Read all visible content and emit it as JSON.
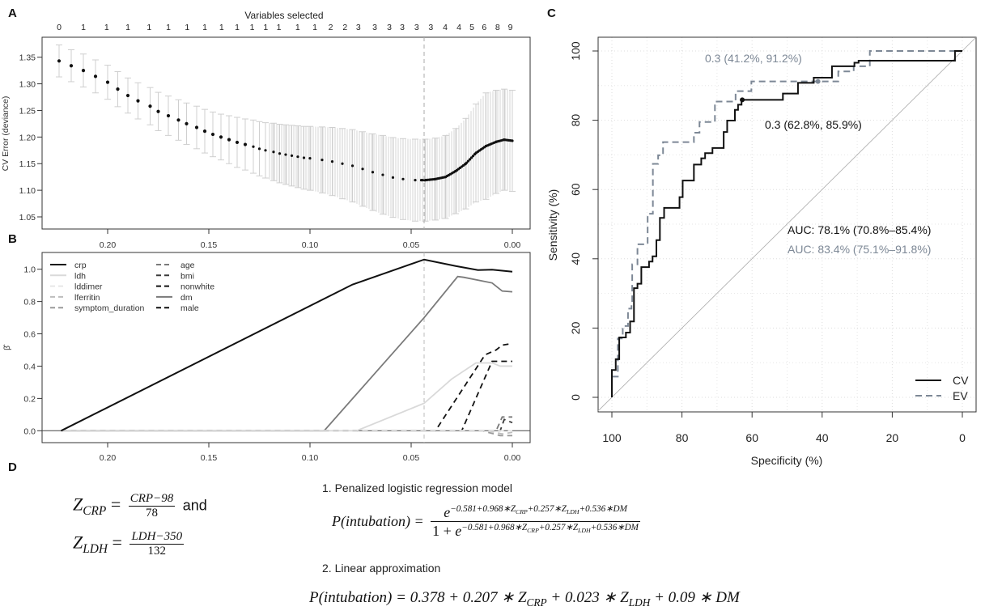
{
  "panel_labels": {
    "a": "A",
    "b": "B",
    "c": "C",
    "d": "D"
  },
  "chart_data": [
    {
      "type": "scatter",
      "panel": "A",
      "top_axis_title": "Variables selected",
      "ylabel": "CV Error (deviance)",
      "xlim": [
        0.23,
        0.0
      ],
      "ylim": [
        1.03,
        1.38
      ],
      "xticks": [
        "0.20",
        "0.15",
        "0.10",
        "0.05",
        "0.00"
      ],
      "yticks": [
        "1.05",
        "1.10",
        "1.15",
        "1.20",
        "1.25",
        "1.30",
        "1.35"
      ],
      "lambda_min": 0.0436,
      "variables_selected": {
        "lambda": [
          0.224,
          0.212,
          0.2005,
          0.19,
          0.1795,
          0.17,
          0.1607,
          0.152,
          0.1437,
          0.136,
          0.1286,
          0.1219,
          0.1154,
          0.1061,
          0.0976,
          0.0898,
          0.0827,
          0.0761,
          0.068,
          0.0608,
          0.0544,
          0.0473,
          0.0403,
          0.0332,
          0.0264,
          0.02,
          0.0139,
          0.0073,
          0.001
        ],
        "count": [
          "0",
          "1",
          "1",
          "1",
          "1",
          "1",
          "1",
          "1",
          "1",
          "1",
          "1",
          "1",
          "1",
          "1",
          "1",
          "2",
          "2",
          "3",
          "3",
          "3",
          "3",
          "3",
          "3",
          "4",
          "4",
          "5",
          "6",
          "8",
          "9"
        ]
      },
      "lambda": [
        0.224,
        0.218,
        0.212,
        0.206,
        0.2,
        0.195,
        0.19,
        0.185,
        0.179,
        0.175,
        0.17,
        0.165,
        0.161,
        0.156,
        0.152,
        0.148,
        0.144,
        0.14,
        0.136,
        0.132,
        0.128,
        0.125,
        0.122,
        0.118,
        0.115,
        0.112,
        0.109,
        0.106,
        0.103,
        0.1,
        0.094,
        0.089,
        0.084,
        0.079,
        0.074,
        0.069,
        0.064,
        0.059,
        0.054,
        0.048,
        0.043,
        0.038,
        0.033,
        0.028,
        0.023,
        0.018,
        0.013,
        0.008,
        0.004,
        0.0
      ],
      "cv": [
        1.343,
        1.334,
        1.325,
        1.314,
        1.303,
        1.29,
        1.278,
        1.268,
        1.258,
        1.248,
        1.24,
        1.232,
        1.225,
        1.218,
        1.211,
        1.205,
        1.2,
        1.195,
        1.19,
        1.186,
        1.182,
        1.178,
        1.175,
        1.172,
        1.169,
        1.167,
        1.165,
        1.163,
        1.161,
        1.16,
        1.157,
        1.154,
        1.15,
        1.146,
        1.14,
        1.134,
        1.129,
        1.124,
        1.121,
        1.119,
        1.119,
        1.121,
        1.125,
        1.136,
        1.15,
        1.17,
        1.183,
        1.191,
        1.195,
        1.193
      ],
      "se": [
        0.03,
        0.03,
        0.031,
        0.031,
        0.032,
        0.033,
        0.033,
        0.034,
        0.035,
        0.036,
        0.037,
        0.038,
        0.039,
        0.04,
        0.041,
        0.042,
        0.043,
        0.045,
        0.047,
        0.048,
        0.05,
        0.051,
        0.052,
        0.054,
        0.055,
        0.056,
        0.057,
        0.058,
        0.059,
        0.06,
        0.062,
        0.064,
        0.066,
        0.068,
        0.07,
        0.072,
        0.074,
        0.075,
        0.076,
        0.077,
        0.077,
        0.077,
        0.078,
        0.08,
        0.085,
        0.092,
        0.1,
        0.097,
        0.095,
        0.095
      ]
    },
    {
      "type": "line",
      "panel": "B",
      "ylabel": "β̂",
      "xlim": [
        0.23,
        0.0
      ],
      "ylim": [
        -0.07,
        1.1
      ],
      "xticks": [
        "0.20",
        "0.15",
        "0.10",
        "0.05",
        "0.00"
      ],
      "yticks": [
        "0.0",
        "0.2",
        "0.4",
        "0.6",
        "0.8",
        "1.0"
      ],
      "lambda_min": 0.0436,
      "series": [
        {
          "name": "crp",
          "color": "#111111",
          "dash": false,
          "points": [
            [
              0.223,
              0
            ],
            [
              0.079,
              0.905
            ],
            [
              0.0436,
              1.06
            ],
            [
              0.028,
              1.02
            ],
            [
              0.017,
              0.995
            ],
            [
              0.01,
              0.997
            ],
            [
              0.0,
              0.985
            ]
          ]
        },
        {
          "name": "ldh",
          "color": "#d9d9d9",
          "dash": false,
          "points": [
            [
              0.23,
              0
            ],
            [
              0.077,
              0
            ],
            [
              0.0436,
              0.17
            ],
            [
              0.03,
              0.32
            ],
            [
              0.018,
              0.42
            ],
            [
              0.01,
              0.42
            ],
            [
              0.006,
              0.4
            ],
            [
              0.0,
              0.4
            ]
          ]
        },
        {
          "name": "lddimer",
          "color": "#e6e6e6",
          "dash": true,
          "points": [
            [
              0.23,
              0
            ],
            [
              0.0,
              0
            ]
          ]
        },
        {
          "name": "lferritin",
          "color": "#bdbdbd",
          "dash": true,
          "points": [
            [
              0.23,
              0
            ],
            [
              0.012,
              0
            ],
            [
              0.005,
              -0.02
            ],
            [
              0.0,
              -0.01
            ]
          ]
        },
        {
          "name": "symptom_duration",
          "color": "#9a9a9a",
          "dash": true,
          "points": [
            [
              0.23,
              0
            ],
            [
              0.015,
              0
            ],
            [
              0.006,
              -0.03
            ],
            [
              0.0,
              -0.03
            ]
          ]
        },
        {
          "name": "age",
          "color": "#7a7a7a",
          "dash": true,
          "points": [
            [
              0.23,
              0
            ],
            [
              0.008,
              0
            ],
            [
              0.005,
              0.085
            ],
            [
              0.0,
              0.085
            ]
          ]
        },
        {
          "name": "bmi",
          "color": "#3a3a3a",
          "dash": true,
          "points": [
            [
              0.23,
              0
            ],
            [
              0.006,
              0
            ],
            [
              0.004,
              0.07
            ],
            [
              0.0,
              0.05
            ]
          ]
        },
        {
          "name": "nonwhite",
          "color": "#111111",
          "dash": true,
          "points": [
            [
              0.23,
              0
            ],
            [
              0.038,
              0
            ],
            [
              0.0135,
              0.47
            ],
            [
              0.008,
              0.5
            ],
            [
              0.005,
              0.53
            ],
            [
              0.0,
              0.54
            ]
          ]
        },
        {
          "name": "dm",
          "color": "#7a7a7a",
          "dash": false,
          "points": [
            [
              0.23,
              0
            ],
            [
              0.093,
              0
            ],
            [
              0.0436,
              0.7
            ],
            [
              0.027,
              0.955
            ],
            [
              0.024,
              0.95
            ],
            [
              0.01,
              0.915
            ],
            [
              0.005,
              0.865
            ],
            [
              0.0,
              0.86
            ]
          ]
        },
        {
          "name": "male",
          "color": "#111111",
          "dash": true,
          "points": [
            [
              0.23,
              0
            ],
            [
              0.025,
              0
            ],
            [
              0.01,
              0.43
            ],
            [
              0.0,
              0.43
            ]
          ]
        }
      ]
    },
    {
      "type": "line",
      "panel": "C",
      "xlabel": "Specificity (%)",
      "ylabel": "Sensitivity (%)",
      "xlim": [
        100,
        0
      ],
      "ylim": [
        0,
        100
      ],
      "xticks": [
        "100",
        "80",
        "60",
        "40",
        "20",
        "0"
      ],
      "yticks": [
        "0",
        "20",
        "40",
        "60",
        "80",
        "100"
      ],
      "grid": true,
      "legend_position": "bottom-right",
      "series": [
        {
          "name": "CV",
          "color": "#111111",
          "dash": false,
          "auc_label": "AUC: 78.1% (70.8%–85.4%)",
          "threshold_label": "0.3 (62.8%, 85.9%)",
          "threshold_point": [
            62.8,
            85.9
          ],
          "points": [
            [
              100,
              0
            ],
            [
              100,
              7.9
            ],
            [
              98.9,
              7.9
            ],
            [
              98.9,
              11
            ],
            [
              97.9,
              11
            ],
            [
              97.9,
              17.3
            ],
            [
              96,
              17.3
            ],
            [
              96,
              18.7
            ],
            [
              94.8,
              18.7
            ],
            [
              94.8,
              21.9
            ],
            [
              93.7,
              21.9
            ],
            [
              93.7,
              31.5
            ],
            [
              92.7,
              31.5
            ],
            [
              92.7,
              32.8
            ],
            [
              91.6,
              32.8
            ],
            [
              91.6,
              37.6
            ],
            [
              89.4,
              37.6
            ],
            [
              89.4,
              39.2
            ],
            [
              88.4,
              39.2
            ],
            [
              88.4,
              40.7
            ],
            [
              87.3,
              40.7
            ],
            [
              87.3,
              45.4
            ],
            [
              86.3,
              45.4
            ],
            [
              86.3,
              51.8
            ],
            [
              85.1,
              51.8
            ],
            [
              85.1,
              54.7
            ],
            [
              80.7,
              54.7
            ],
            [
              80.7,
              57.8
            ],
            [
              79.8,
              57.8
            ],
            [
              79.8,
              62.6
            ],
            [
              76.6,
              62.6
            ],
            [
              76.6,
              67.2
            ],
            [
              74.5,
              67.2
            ],
            [
              74.5,
              69
            ],
            [
              73.4,
              69
            ],
            [
              73.4,
              70.5
            ],
            [
              71.3,
              70.5
            ],
            [
              71.3,
              72
            ],
            [
              68.1,
              72
            ],
            [
              68.1,
              76.6
            ],
            [
              67.1,
              76.6
            ],
            [
              67.1,
              79.9
            ],
            [
              64.9,
              79.9
            ],
            [
              64.9,
              83
            ],
            [
              64,
              83
            ],
            [
              64,
              84.5
            ],
            [
              63,
              84.5
            ],
            [
              63,
              85.9
            ],
            [
              51.2,
              85.9
            ],
            [
              51.2,
              87.7
            ],
            [
              46.9,
              87.7
            ],
            [
              46.9,
              90.8
            ],
            [
              42.4,
              90.8
            ],
            [
              42.4,
              92.3
            ],
            [
              37.2,
              92.3
            ],
            [
              37.2,
              95.6
            ],
            [
              30.8,
              95.6
            ],
            [
              30.8,
              96.6
            ],
            [
              29.6,
              96.6
            ],
            [
              29.6,
              97.2
            ],
            [
              2.1,
              97.2
            ],
            [
              2.1,
              100
            ],
            [
              0,
              100
            ]
          ]
        },
        {
          "name": "EV",
          "color": "#7d8896",
          "dash": true,
          "auc_label": "AUC: 83.4% (75.1%–91.8%)",
          "threshold_label": "0.3 (41.2%, 91.2%)",
          "threshold_point": [
            41.2,
            91.2
          ],
          "points": [
            [
              100,
              0
            ],
            [
              100,
              6
            ],
            [
              98.3,
              6
            ],
            [
              98.3,
              17
            ],
            [
              96.9,
              17
            ],
            [
              96.9,
              20.6
            ],
            [
              95.4,
              20.6
            ],
            [
              95.4,
              25.6
            ],
            [
              94.4,
              25.6
            ],
            [
              94.4,
              26.7
            ],
            [
              94.2,
              26.7
            ],
            [
              94.2,
              38.4
            ],
            [
              92.7,
              38.4
            ],
            [
              92.7,
              44.2
            ],
            [
              89.8,
              44.2
            ],
            [
              89.8,
              53
            ],
            [
              88.3,
              53
            ],
            [
              88.3,
              67.4
            ],
            [
              86.8,
              67.4
            ],
            [
              86.8,
              69.9
            ],
            [
              85.4,
              69.9
            ],
            [
              85.4,
              73.7
            ],
            [
              76.6,
              73.7
            ],
            [
              76.6,
              76.4
            ],
            [
              75,
              76.4
            ],
            [
              75,
              79.5
            ],
            [
              70.6,
              79.5
            ],
            [
              70.6,
              85.4
            ],
            [
              64.7,
              85.4
            ],
            [
              64.7,
              88.4
            ],
            [
              60.2,
              88.4
            ],
            [
              60.2,
              91.2
            ],
            [
              35.4,
              91.2
            ],
            [
              35.4,
              94.1
            ],
            [
              31,
              94.1
            ],
            [
              31,
              95.6
            ],
            [
              26.4,
              95.6
            ],
            [
              26.4,
              100
            ],
            [
              0,
              100
            ]
          ]
        }
      ]
    }
  ],
  "formulas": {
    "z_crp": {
      "z": "Z",
      "sub": "CRP",
      "eq": "=",
      "num": "CRP−98",
      "den": "78",
      "and": "and"
    },
    "z_ldh": {
      "z": "Z",
      "sub": "LDH",
      "eq": "=",
      "num": "LDH−350",
      "den": "132"
    },
    "step1": "1.  Penalized logistic regression model",
    "step2": "2.  Linear approximation",
    "logistic": {
      "lhs": "P(intubation) =",
      "exp_base": "e",
      "exponent": "−0.581+0.968∗Z",
      "exp_sub1": "CRP",
      "exp_mid": "+0.257∗Z",
      "exp_sub2": "LDH",
      "exp_end": "+0.536∗DM",
      "den_prefix": "1 + "
    },
    "linear": {
      "lhs": "P(intubation) = 0.378 + 0.207 ∗ Z",
      "sub1": "CRP",
      "mid": " + 0.023 ∗ Z",
      "sub2": "LDH",
      "end": " + 0.09 ∗ DM"
    }
  }
}
